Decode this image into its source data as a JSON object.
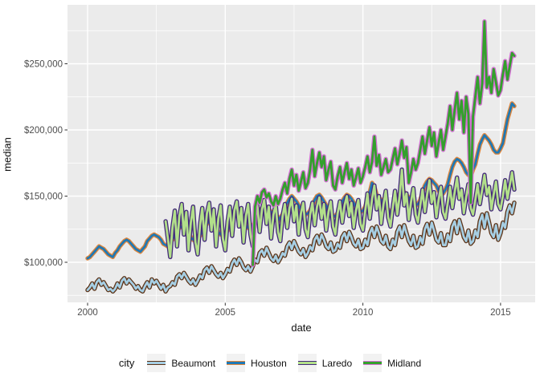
{
  "axes": {
    "x": {
      "title": "date",
      "tick_labels": [
        "2000",
        "2005",
        "2010",
        "2015"
      ]
    },
    "y": {
      "title": "median",
      "tick_labels": [
        "$100,000",
        "$150,000",
        "$200,000",
        "$250,000"
      ]
    }
  },
  "legend": {
    "title": "city",
    "items": [
      "Beaumont",
      "Houston",
      "Laredo",
      "Midland"
    ]
  },
  "colors": {
    "panel_background": "#EBEBEB",
    "gridline": "#FFFFFF",
    "tick_mark": "#333333",
    "tick_text": "#4D4D4D",
    "legend_key_background": "#F2F2F2"
  },
  "chart_data": {
    "type": "line",
    "title": "",
    "xlabel": "date",
    "ylabel": "median",
    "x_axis": {
      "tick_values": [
        2000,
        2005,
        2010,
        2015
      ],
      "minor_values": [
        2002.5,
        2007.5,
        2012.5
      ],
      "range": [
        1999.3,
        2016.25
      ]
    },
    "y_axis": {
      "tick_values_k": [
        100,
        150,
        200,
        250
      ],
      "minor_values_k": [
        75,
        125,
        175,
        225,
        275
      ],
      "range_k": [
        69,
        295
      ]
    },
    "values_unit": "USD thousands, monthly median sale price",
    "x_encoding": "year = start_year + index/12",
    "legend_position": "bottom",
    "grid": true,
    "series": [
      {
        "name": "Beaumont",
        "color_inner": "#A6CEE3",
        "color_outer": "#5C3317",
        "start_year": 2000.0,
        "values_k": [
          79,
          81,
          84,
          80,
          85,
          87,
          83,
          85,
          82,
          79,
          80,
          78,
          80,
          84,
          81,
          86,
          88,
          84,
          87,
          85,
          83,
          80,
          82,
          79,
          78,
          82,
          85,
          81,
          87,
          84,
          86,
          83,
          80,
          83,
          78,
          81,
          82,
          85,
          83,
          89,
          91,
          88,
          92,
          89,
          86,
          84,
          87,
          83,
          86,
          90,
          88,
          94,
          96,
          92,
          97,
          94,
          91,
          89,
          92,
          88,
          91,
          95,
          93,
          99,
          102,
          98,
          103,
          100,
          96,
          94,
          97,
          93,
          97,
          102,
          100,
          107,
          109,
          105,
          111,
          107,
          103,
          101,
          105,
          100,
          103,
          107,
          105,
          112,
          115,
          110,
          116,
          112,
          108,
          106,
          110,
          104,
          107,
          112,
          109,
          117,
          120,
          114,
          121,
          117,
          112,
          110,
          115,
          108,
          109,
          114,
          111,
          119,
          122,
          116,
          123,
          119,
          114,
          112,
          117,
          110,
          111,
          117,
          113,
          122,
          126,
          119,
          127,
          122,
          116,
          114,
          120,
          112,
          110,
          117,
          113,
          123,
          127,
          119,
          128,
          122,
          116,
          113,
          120,
          111,
          112,
          119,
          114,
          125,
          129,
          121,
          130,
          124,
          117,
          115,
          122,
          113,
          113,
          121,
          116,
          127,
          131,
          122,
          132,
          126,
          119,
          116,
          124,
          114,
          116,
          124,
          119,
          131,
          136,
          126,
          137,
          130,
          122,
          119,
          128,
          117,
          122,
          130,
          126,
          138,
          143,
          137,
          145
        ]
      },
      {
        "name": "Houston",
        "color_inner": "#1F78B4",
        "color_outer": "#E0863C",
        "start_year": 2000.0,
        "values_k": [
          103,
          104,
          106,
          108,
          110,
          112,
          111,
          110,
          108,
          106,
          105,
          104,
          107,
          109,
          112,
          114,
          116,
          117,
          116,
          114,
          112,
          110,
          109,
          108,
          110,
          112,
          116,
          118,
          120,
          121,
          120,
          119,
          117,
          114,
          113,
          112,
          115,
          117,
          121,
          124,
          126,
          127,
          126,
          124,
          122,
          119,
          117,
          116,
          118,
          120,
          124,
          127,
          129,
          131,
          130,
          128,
          126,
          123,
          121,
          120,
          122,
          124,
          128,
          132,
          135,
          136,
          135,
          133,
          131,
          128,
          126,
          125,
          128,
          130,
          135,
          139,
          141,
          143,
          142,
          140,
          138,
          134,
          132,
          131,
          134,
          136,
          141,
          145,
          148,
          150,
          148,
          146,
          143,
          139,
          137,
          136,
          137,
          139,
          143,
          147,
          150,
          151,
          149,
          146,
          143,
          139,
          137,
          135,
          135,
          137,
          141,
          146,
          149,
          151,
          150,
          148,
          145,
          141,
          139,
          138,
          139,
          142,
          148,
          153,
          160,
          157,
          151,
          149,
          147,
          143,
          141,
          140,
          137,
          139,
          144,
          149,
          152,
          154,
          153,
          151,
          149,
          145,
          143,
          143,
          144,
          147,
          153,
          158,
          161,
          163,
          162,
          160,
          158,
          154,
          152,
          152,
          155,
          159,
          166,
          172,
          176,
          178,
          177,
          175,
          172,
          168,
          166,
          165,
          170,
          174,
          182,
          189,
          193,
          196,
          194,
          192,
          189,
          185,
          183,
          183,
          186,
          190,
          199,
          208,
          214,
          220,
          218
        ]
      },
      {
        "name": "Laredo",
        "color_inner": "#B2DF8A",
        "color_outer": "#44297B",
        "start_year": 2002.8333,
        "values_k": [
          131,
          118,
          104,
          126,
          139,
          112,
          135,
          144,
          121,
          138,
          109,
          130,
          142,
          115,
          106,
          128,
          141,
          117,
          137,
          145,
          124,
          140,
          112,
          133,
          143,
          118,
          109,
          131,
          142,
          120,
          139,
          146,
          127,
          141,
          115,
          135,
          144,
          121,
          112,
          133,
          143,
          123,
          140,
          147,
          129,
          142,
          118,
          136,
          144,
          123,
          116,
          135,
          144,
          126,
          141,
          148,
          131,
          143,
          121,
          137,
          145,
          125,
          119,
          136,
          145,
          128,
          142,
          149,
          133,
          144,
          124,
          138,
          146,
          127,
          121,
          137,
          146,
          130,
          143,
          150,
          135,
          145,
          126,
          139,
          147,
          129,
          124,
          139,
          152,
          133,
          148,
          158,
          140,
          150,
          129,
          144,
          154,
          134,
          127,
          141,
          154,
          136,
          150,
          170,
          143,
          152,
          132,
          146,
          156,
          136,
          130,
          143,
          155,
          138,
          151,
          162,
          145,
          153,
          134,
          147,
          157,
          138,
          133,
          145,
          157,
          141,
          153,
          164,
          148,
          155,
          137,
          149,
          159,
          141,
          136,
          147,
          159,
          144,
          155,
          166,
          151,
          157,
          140,
          151,
          161,
          144,
          140,
          150,
          162,
          148,
          158,
          168,
          155
        ]
      },
      {
        "name": "Midland",
        "color_inner": "#33A02C",
        "color_outer": "#D46FD4",
        "start_year": 2006.0,
        "values_k": [
          98,
          142,
          150,
          145,
          153,
          155,
          149,
          152,
          146,
          143,
          150,
          144,
          148,
          155,
          160,
          152,
          163,
          170,
          158,
          166,
          154,
          161,
          168,
          156,
          160,
          170,
          185,
          165,
          175,
          183,
          172,
          180,
          162,
          170,
          176,
          158,
          155,
          165,
          172,
          160,
          168,
          175,
          163,
          170,
          158,
          164,
          171,
          160,
          165,
          172,
          180,
          168,
          176,
          195,
          173,
          181,
          166,
          172,
          178,
          168,
          170,
          178,
          186,
          174,
          182,
          192,
          179,
          187,
          160,
          168,
          178,
          170,
          175,
          185,
          195,
          182,
          192,
          202,
          188,
          198,
          180,
          190,
          200,
          185,
          195,
          205,
          218,
          200,
          215,
          228,
          208,
          222,
          198,
          225,
          212,
          145,
          210,
          225,
          240,
          220,
          235,
          282,
          232,
          240,
          228,
          246,
          236,
          226,
          230,
          242,
          252,
          238,
          248,
          258,
          256
        ]
      }
    ]
  }
}
